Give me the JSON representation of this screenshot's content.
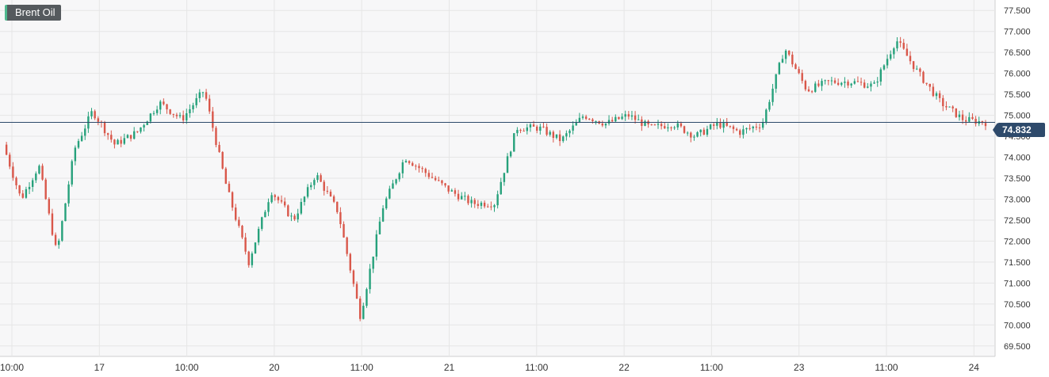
{
  "instrument": {
    "label": "Brent Oil"
  },
  "last_price": {
    "label": "74.832",
    "value": 74.832
  },
  "colors": {
    "up": "#26a17b",
    "down": "#d9574a",
    "grid": "#e6e6e6",
    "bg": "#f7f7f8",
    "price_line": "#2e4a6b"
  },
  "chart_data": {
    "type": "candlestick",
    "title": "",
    "xlabel": "",
    "ylabel": "",
    "ylim": [
      69.25,
      77.75
    ],
    "y_ticks": [
      "69.500",
      "70.000",
      "70.500",
      "71.000",
      "71.500",
      "72.000",
      "72.500",
      "73.000",
      "73.500",
      "74.000",
      "74.500",
      "75.000",
      "75.500",
      "76.000",
      "76.500",
      "77.000",
      "77.500"
    ],
    "x_ticks": [
      "10:00",
      "17",
      "10:00",
      "20",
      "11:00",
      "21",
      "11:00",
      "22",
      "11:00",
      "23",
      "11:00",
      "24"
    ],
    "grid": true,
    "last_price": 74.832,
    "series": [
      {
        "x": [
          0,
          0.04,
          0.08,
          0.12,
          0.16,
          0.2,
          0.25,
          0.3,
          0.35,
          0.4,
          0.45,
          0.5,
          0.55,
          0.6,
          0.65,
          0.7,
          0.75,
          0.8,
          0.85,
          0.9,
          0.95,
          1.0
        ],
        "values": [
          74.3,
          73.0,
          73.8,
          71.7,
          74.2,
          75.1,
          74.3,
          74.6,
          75.3,
          74.9,
          75.6,
          73.3,
          71.5,
          73.2,
          72.5,
          73.6,
          72.7,
          70.2,
          72.8,
          74.0,
          73.6,
          73.2
        ]
      },
      {
        "x": [
          1.0,
          1.05,
          1.1,
          1.15,
          1.2,
          1.25,
          1.3,
          1.35,
          1.4,
          1.45,
          1.5,
          1.55,
          1.6,
          1.65,
          1.7,
          1.75,
          1.8,
          1.85,
          1.9,
          1.95,
          2.0
        ],
        "values": [
          73.2,
          72.9,
          72.9,
          74.7,
          74.7,
          74.4,
          75.0,
          74.8,
          75.0,
          74.7,
          74.8,
          74.5,
          74.8,
          74.6,
          74.8,
          76.6,
          75.6,
          75.8,
          75.8,
          75.7,
          76.8
        ]
      },
      {
        "x": [
          2.0,
          2.05,
          2.1,
          2.15,
          2.2
        ],
        "values": [
          76.8,
          76.0,
          75.3,
          74.9,
          74.832
        ]
      }
    ]
  }
}
